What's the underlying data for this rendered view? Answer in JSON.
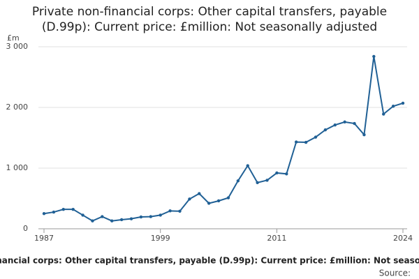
{
  "chart_data": {
    "type": "line",
    "title": "Private non-financial corps: Other capital transfers, payable (D.99p): Current price: £million: Not seasonally adjusted",
    "y_unit": "£m",
    "source": "Source:",
    "x": [
      1987,
      1988,
      1989,
      1990,
      1991,
      1992,
      1993,
      1994,
      1995,
      1996,
      1997,
      1998,
      1999,
      2000,
      2001,
      2002,
      2003,
      2004,
      2005,
      2006,
      2007,
      2008,
      2009,
      2010,
      2011,
      2012,
      2013,
      2014,
      2015,
      2016,
      2017,
      2018,
      2019,
      2020,
      2021,
      2022,
      2023,
      2024
    ],
    "series": [
      {
        "name": "D.99p",
        "color": "#206095",
        "values": [
          250,
          275,
          320,
          320,
          225,
          130,
          200,
          130,
          150,
          165,
          195,
          200,
          225,
          295,
          290,
          490,
          580,
          420,
          460,
          510,
          790,
          1040,
          760,
          800,
          920,
          905,
          1430,
          1425,
          1510,
          1630,
          1710,
          1760,
          1735,
          1550,
          2840,
          1890,
          2020,
          2070
        ]
      }
    ],
    "xlim": [
      1987,
      2024
    ],
    "xticks": [
      1987,
      1999,
      2011,
      2024
    ],
    "ylim": [
      0,
      3000
    ],
    "yticks": [
      0,
      {
        "value": 1000,
        "label": "1 000"
      },
      {
        "value": 2000,
        "label": "2 000"
      },
      {
        "value": 3000,
        "label": "3 000"
      }
    ],
    "grid": true
  }
}
